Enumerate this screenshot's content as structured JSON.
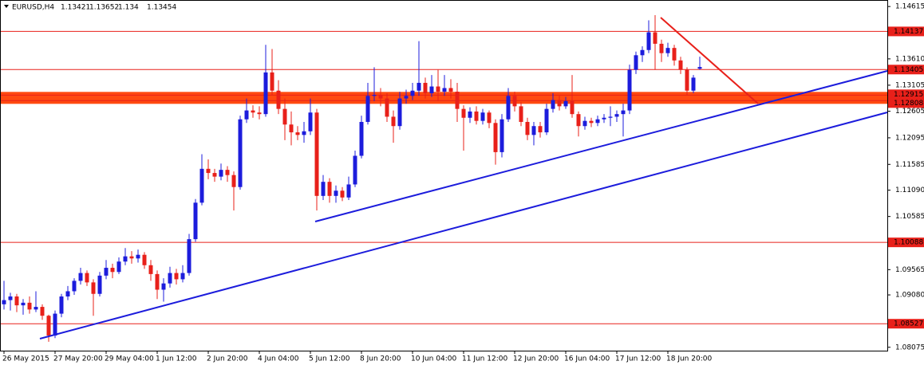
{
  "chart_data": {
    "type": "candlestick",
    "series": [
      {
        "name": "EURUSD,H4",
        "up_color": "#1c1cdc",
        "down_color": "#e8201a",
        "open": [
          1.089,
          1.0898,
          1.0905,
          1.0888,
          1.0893,
          1.088,
          1.0885,
          1.0868,
          1.083,
          1.0872,
          1.0905,
          1.0915,
          1.0935,
          1.095,
          1.0932,
          1.091,
          1.0945,
          1.096,
          1.0952,
          1.0972,
          1.0982,
          1.0978,
          1.0985,
          1.0965,
          1.0948,
          1.0918,
          1.093,
          1.095,
          1.0938,
          1.095,
          1.1015,
          1.1085,
          1.115,
          1.1142,
          1.1135,
          1.1148,
          1.1138,
          1.1115,
          1.1245,
          1.1262,
          1.1258,
          1.1255,
          1.1335,
          1.13,
          1.1265,
          1.1235,
          1.122,
          1.1215,
          1.1222,
          1.1258,
          1.1098,
          1.1125,
          1.1098,
          1.1108,
          1.1095,
          1.112,
          1.1175,
          1.124,
          1.129,
          1.1292,
          1.1285,
          1.125,
          1.1232,
          1.1285,
          1.129,
          1.13,
          1.1315,
          1.1295,
          1.1308,
          1.1298,
          1.1305,
          1.1298,
          1.1265,
          1.1248,
          1.126,
          1.1242,
          1.1258,
          1.1238,
          1.1182,
          1.1245,
          1.129,
          1.127,
          1.124,
          1.1215,
          1.1232,
          1.122,
          1.1265,
          1.1282,
          1.127,
          1.128,
          1.1255,
          1.1232,
          1.1242,
          1.1238,
          1.1245,
          1.1248,
          1.125,
          1.1255,
          1.1262,
          1.134,
          1.1368,
          1.1378,
          1.1412,
          1.139,
          1.1372,
          1.1382,
          1.1358,
          1.134,
          1.13,
          1.13421
        ],
        "high": [
          1.0935,
          1.0912,
          1.091,
          1.09,
          1.0905,
          1.0915,
          1.089,
          1.087,
          1.0878,
          1.091,
          1.0925,
          1.094,
          1.096,
          1.0955,
          1.0938,
          1.0952,
          1.0975,
          1.0968,
          1.098,
          1.0998,
          1.0992,
          1.0995,
          1.099,
          1.0975,
          1.0955,
          1.094,
          1.0962,
          1.0958,
          1.0965,
          1.1025,
          1.1092,
          1.1178,
          1.1168,
          1.115,
          1.116,
          1.1155,
          1.1145,
          1.1252,
          1.1285,
          1.1272,
          1.127,
          1.1388,
          1.138,
          1.132,
          1.1285,
          1.126,
          1.1232,
          1.124,
          1.1285,
          1.1265,
          1.1138,
          1.1132,
          1.1118,
          1.1115,
          1.1135,
          1.1185,
          1.1252,
          1.1315,
          1.1345,
          1.1305,
          1.1295,
          1.1262,
          1.1298,
          1.1302,
          1.1315,
          1.1395,
          1.1325,
          1.133,
          1.134,
          1.133,
          1.1322,
          1.1315,
          1.1272,
          1.1268,
          1.127,
          1.1265,
          1.1262,
          1.1245,
          1.1255,
          1.1305,
          1.1298,
          1.1278,
          1.1248,
          1.124,
          1.124,
          1.1275,
          1.1295,
          1.129,
          1.1288,
          1.133,
          1.126,
          1.125,
          1.1248,
          1.1252,
          1.1255,
          1.127,
          1.1262,
          1.1275,
          1.135,
          1.1375,
          1.1385,
          1.1435,
          1.1445,
          1.1398,
          1.1392,
          1.1388,
          1.1365,
          1.1345,
          1.133,
          1.13652
        ],
        "low": [
          1.088,
          1.0878,
          1.0875,
          1.087,
          1.0872,
          1.0875,
          1.086,
          1.0818,
          1.0825,
          1.0865,
          1.0898,
          1.0908,
          1.0928,
          1.0925,
          1.0868,
          1.0905,
          1.0938,
          1.094,
          1.0948,
          1.0965,
          1.0968,
          1.097,
          1.0958,
          1.0935,
          1.09,
          1.0895,
          1.0922,
          1.0928,
          1.0932,
          1.0945,
          1.101,
          1.108,
          1.113,
          1.1125,
          1.1128,
          1.1125,
          1.107,
          1.111,
          1.1238,
          1.1248,
          1.1245,
          1.125,
          1.1292,
          1.1255,
          1.1205,
          1.1195,
          1.1205,
          1.12,
          1.1215,
          1.107,
          1.109,
          1.1085,
          1.1085,
          1.1088,
          1.109,
          1.1115,
          1.117,
          1.1235,
          1.128,
          1.127,
          1.124,
          1.12,
          1.1225,
          1.1275,
          1.1282,
          1.129,
          1.1285,
          1.1288,
          1.128,
          1.129,
          1.1285,
          1.124,
          1.1185,
          1.1238,
          1.1235,
          1.1235,
          1.1228,
          1.1158,
          1.1172,
          1.124,
          1.126,
          1.1232,
          1.1205,
          1.1195,
          1.121,
          1.1215,
          1.1258,
          1.1262,
          1.1265,
          1.1248,
          1.1212,
          1.1225,
          1.123,
          1.1232,
          1.1238,
          1.1232,
          1.124,
          1.1212,
          1.1255,
          1.1332,
          1.1355,
          1.1372,
          1.134,
          1.1355,
          1.1365,
          1.1348,
          1.1332,
          1.1292,
          1.1295,
          1.134
        ],
        "close": [
          1.0898,
          1.0905,
          1.0888,
          1.0893,
          1.088,
          1.0885,
          1.0868,
          1.083,
          1.0872,
          1.0905,
          1.0915,
          1.0935,
          1.095,
          1.0932,
          1.091,
          1.0945,
          1.096,
          1.0952,
          1.0972,
          1.0982,
          1.0978,
          1.0985,
          1.0965,
          1.0948,
          1.0918,
          1.093,
          1.095,
          1.0938,
          1.095,
          1.1015,
          1.1085,
          1.115,
          1.1142,
          1.1135,
          1.1148,
          1.1138,
          1.1115,
          1.1245,
          1.1262,
          1.1258,
          1.1255,
          1.1335,
          1.13,
          1.1265,
          1.1235,
          1.122,
          1.1215,
          1.1222,
          1.1258,
          1.1098,
          1.1125,
          1.1098,
          1.1108,
          1.1095,
          1.112,
          1.1175,
          1.124,
          1.129,
          1.1292,
          1.1285,
          1.125,
          1.1232,
          1.1285,
          1.129,
          1.13,
          1.1315,
          1.1295,
          1.1308,
          1.1298,
          1.1305,
          1.1298,
          1.1265,
          1.1248,
          1.126,
          1.1242,
          1.1258,
          1.1238,
          1.1182,
          1.1245,
          1.129,
          1.127,
          1.124,
          1.1215,
          1.1232,
          1.122,
          1.1265,
          1.1282,
          1.127,
          1.128,
          1.1255,
          1.1232,
          1.1242,
          1.1238,
          1.1245,
          1.1248,
          1.125,
          1.1255,
          1.1262,
          1.134,
          1.1368,
          1.1378,
          1.1412,
          1.139,
          1.1372,
          1.1382,
          1.1358,
          1.134,
          1.13,
          1.1325,
          1.13454
        ]
      }
    ],
    "categories": [
      "26 May 2015",
      null,
      null,
      null,
      null,
      null,
      null,
      null,
      "27 May 20:00",
      null,
      null,
      null,
      null,
      null,
      null,
      null,
      "29 May 04:00",
      null,
      null,
      null,
      null,
      null,
      null,
      null,
      "1 Jun 12:00",
      null,
      null,
      null,
      null,
      null,
      null,
      null,
      "2 Jun 20:00",
      null,
      null,
      null,
      null,
      null,
      null,
      null,
      "4 Jun 04:00",
      null,
      null,
      null,
      null,
      null,
      null,
      null,
      "5 Jun 12:00",
      null,
      null,
      null,
      null,
      null,
      null,
      null,
      "8 Jun 20:00",
      null,
      null,
      null,
      null,
      null,
      null,
      null,
      "10 Jun 04:00",
      null,
      null,
      null,
      null,
      null,
      null,
      null,
      "11 Jun 12:00",
      null,
      null,
      null,
      null,
      null,
      null,
      null,
      "12 Jun 20:00",
      null,
      null,
      null,
      null,
      null,
      null,
      null,
      "16 Jun 04:00",
      null,
      null,
      null,
      null,
      null,
      null,
      null,
      "17 Jun 12:00",
      null,
      null,
      null,
      null,
      null,
      null,
      null,
      "18 Jun 20:00",
      null,
      null,
      null,
      null,
      null
    ],
    "ylim": [
      1.0801,
      1.1474
    ],
    "yticks": [
      1.14615,
      {
        "value": 1.1361,
        "label": "1.13610"
      },
      1.13105,
      1.12605,
      1.12095,
      1.11585,
      {
        "value": 1.1109,
        "label": "1.11090"
      },
      1.10585,
      1.09565,
      {
        "value": 1.0908,
        "label": "1.09080"
      },
      1.08075
    ],
    "levels": [
      1.14137,
      1.13405,
      1.12915,
      1.12808,
      1.10088,
      1.08527
    ],
    "level_color": "#e8201a",
    "band_color": "#ff4a10"
  }
}
